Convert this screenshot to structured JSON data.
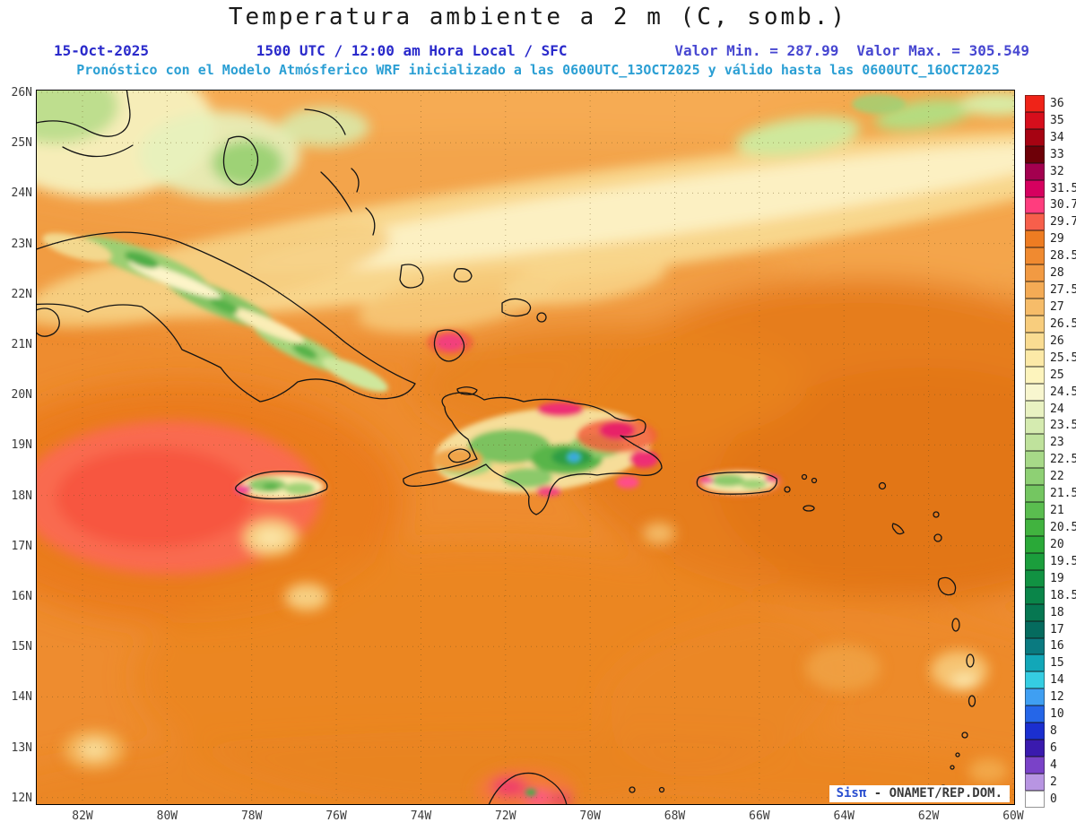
{
  "header": {
    "title": "Temperatura ambiente a 2 m (C, somb.)",
    "date": "15-Oct-2025",
    "time": "1500 UTC / 12:00 am Hora Local / SFC",
    "valor_min_label": "Valor Min. = 287.99",
    "valor_max_label": "Valor Max. = 305.549",
    "forecast": "Pronóstico con el Modelo Atmósferico WRF inicializado a las 0600UTC_13OCT2025 y válido hasta las  0600UTC_16OCT2025"
  },
  "colors": {
    "header_blue": "#2a2acb",
    "valor_blue": "#4747d1",
    "forecast_cyan": "#2b9fd4",
    "title_black": "#1a1a1a",
    "sea_base_orange": "#ee8c2f"
  },
  "map": {
    "lat_labels": [
      "26N",
      "25N",
      "24N",
      "23N",
      "22N",
      "21N",
      "20N",
      "19N",
      "18N",
      "17N",
      "16N",
      "15N",
      "14N",
      "13N",
      "12N"
    ],
    "lon_labels": [
      "82W",
      "80W",
      "78W",
      "76W",
      "74W",
      "72W",
      "70W",
      "68W",
      "66W",
      "64W",
      "62W",
      "60W"
    ],
    "watermark": {
      "brand": "Sisπ",
      "org": " - ONAMET/REP.DOM."
    }
  },
  "colorbar": {
    "entries": [
      {
        "label": "36",
        "color": "#ef2318"
      },
      {
        "label": "35",
        "color": "#d60e1c"
      },
      {
        "label": "34",
        "color": "#a60312"
      },
      {
        "label": "33",
        "color": "#6e0008"
      },
      {
        "label": "32",
        "color": "#a3004f"
      },
      {
        "label": "31.5",
        "color": "#d6005f"
      },
      {
        "label": "30.7",
        "color": "#ff3d7e"
      },
      {
        "label": "29.7",
        "color": "#f75f4b"
      },
      {
        "label": "29",
        "color": "#ee7c22"
      },
      {
        "label": "28.5",
        "color": "#f08a30"
      },
      {
        "label": "28",
        "color": "#f29a42"
      },
      {
        "label": "27.5",
        "color": "#f4ab55"
      },
      {
        "label": "27",
        "color": "#f6bc69"
      },
      {
        "label": "26.5",
        "color": "#f8cd7d"
      },
      {
        "label": "26",
        "color": "#fadc92"
      },
      {
        "label": "25.5",
        "color": "#fce9a7"
      },
      {
        "label": "25",
        "color": "#fdf4bd"
      },
      {
        "label": "24.5",
        "color": "#f8f6cf"
      },
      {
        "label": "24",
        "color": "#e9f2c2"
      },
      {
        "label": "23.5",
        "color": "#d5ebb0"
      },
      {
        "label": "23",
        "color": "#bfe29c"
      },
      {
        "label": "22.5",
        "color": "#a7d988"
      },
      {
        "label": "22",
        "color": "#8ed074"
      },
      {
        "label": "21.5",
        "color": "#74c661"
      },
      {
        "label": "21",
        "color": "#5abd4f"
      },
      {
        "label": "20.5",
        "color": "#41b33f"
      },
      {
        "label": "20",
        "color": "#2aa938"
      },
      {
        "label": "19.5",
        "color": "#1b9e3c"
      },
      {
        "label": "19",
        "color": "#119242"
      },
      {
        "label": "18.5",
        "color": "#0a8549"
      },
      {
        "label": "18",
        "color": "#067751"
      },
      {
        "label": "17",
        "color": "#056b5e"
      },
      {
        "label": "16",
        "color": "#0a7a80"
      },
      {
        "label": "15",
        "color": "#12a7b8"
      },
      {
        "label": "14",
        "color": "#35cde2"
      },
      {
        "label": "12",
        "color": "#3f9ff2"
      },
      {
        "label": "10",
        "color": "#2566e8"
      },
      {
        "label": "8",
        "color": "#1b2fd0"
      },
      {
        "label": "6",
        "color": "#3a1aae"
      },
      {
        "label": "4",
        "color": "#7a42c8"
      },
      {
        "label": "2",
        "color": "#b895e2"
      },
      {
        "label": "0",
        "color": "#ffffff"
      }
    ]
  },
  "chart_data": {
    "type": "heatmap",
    "title": "Temperatura ambiente a 2 m (C, somb.)",
    "variable": "air temperature at 2 m",
    "units": "C",
    "valor_min": 287.99,
    "valor_max": 305.549,
    "lat_range": [
      "12N",
      "26N"
    ],
    "lon_range": [
      "82W",
      "60W"
    ],
    "colorbar_levels": [
      36,
      35,
      34,
      33,
      32,
      31.5,
      30.7,
      29.7,
      29,
      28.5,
      28,
      27.5,
      27,
      26.5,
      26,
      25.5,
      25,
      24.5,
      24,
      23.5,
      23,
      22.5,
      22,
      21.5,
      21,
      20.5,
      20,
      19.5,
      19,
      18.5,
      18,
      17,
      16,
      15,
      14,
      12,
      10,
      8,
      6,
      4,
      2,
      0
    ],
    "legend_position": "right",
    "grid": "dotted lat/lon graticule"
  }
}
